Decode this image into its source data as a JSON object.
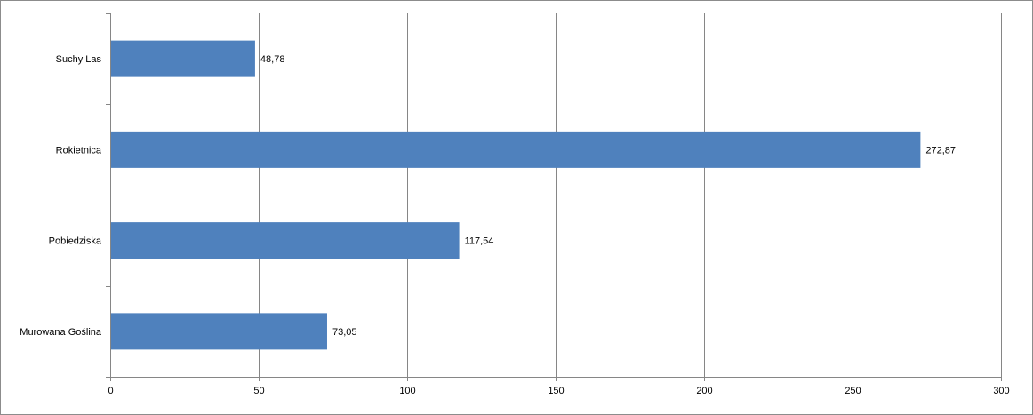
{
  "chart_data": {
    "type": "bar",
    "orientation": "horizontal",
    "title": "",
    "xlabel": "",
    "ylabel": "",
    "categories": [
      "Murowana Goślina",
      "Pobiedziska",
      "Rokietnica",
      "Suchy Las"
    ],
    "values": [
      73.05,
      117.54,
      272.87,
      48.78
    ],
    "data_labels": [
      "73,05",
      "117,54",
      "272,87",
      "48,78"
    ],
    "xlim": [
      0,
      300
    ],
    "x_ticks": [
      0,
      50,
      100,
      150,
      200,
      250,
      300
    ],
    "x_tick_labels": [
      "0",
      "50",
      "100",
      "150",
      "200",
      "250",
      "300"
    ],
    "grid": true,
    "legend": "none",
    "bar_color": "#4f81bd",
    "grid_color": "#868686",
    "axis_color": "#868686"
  }
}
